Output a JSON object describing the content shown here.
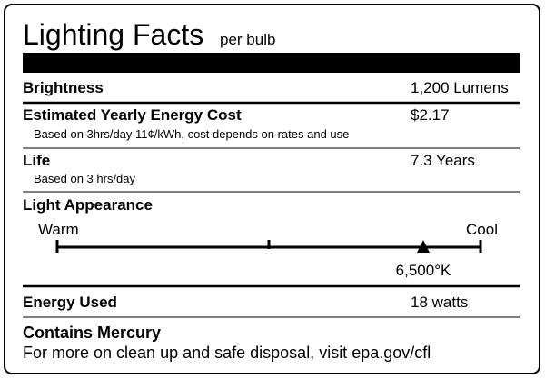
{
  "header": {
    "title": "Lighting Facts",
    "subtitle": "per bulb"
  },
  "rows": [
    {
      "label": "Brightness",
      "value": "1,200 Lumens"
    },
    {
      "label": "Estimated Yearly Energy Cost",
      "value": "$2.17",
      "note": "Based on 3hrs/day 11¢/kWh, cost depends on rates and use"
    },
    {
      "label": "Life",
      "value": "7.3 Years",
      "note": "Based on 3 hrs/day"
    },
    {
      "label": "Energy Used",
      "value": "18 watts"
    }
  ],
  "light_appearance": {
    "label": "Light Appearance",
    "warm": "Warm",
    "cool": "Cool",
    "marker_label": "6,500°K"
  },
  "footer": {
    "title": "Contains Mercury",
    "text": "For more on clean up and safe disposal, visit epa.gov/cfl"
  }
}
